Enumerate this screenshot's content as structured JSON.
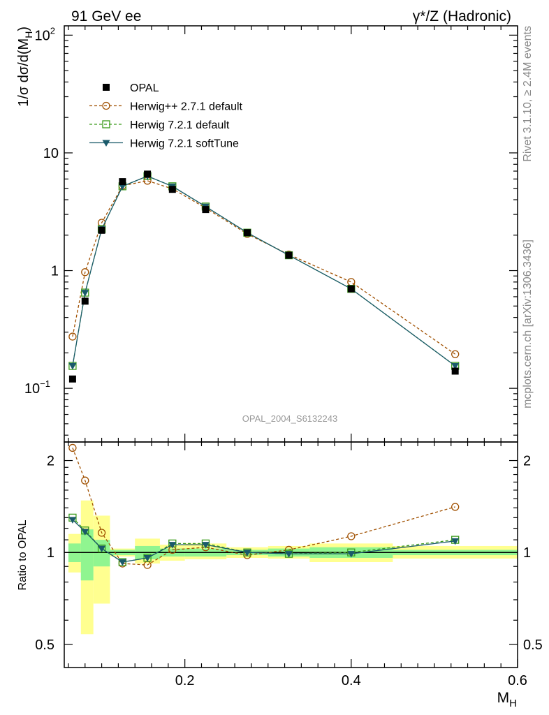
{
  "header": {
    "left": "91 GeV ee",
    "right": "γ*/Z (Hadronic)"
  },
  "side_labels": {
    "rivet": "Rivet 3.1.10, ≥ 2.4M events",
    "mcplots": "mcplots.cern.ch [arXiv:1306.3436]"
  },
  "colors": {
    "opal": "#000000",
    "herwigpp": "#a05000",
    "herwig721": "#3a9a1a",
    "softtune": "#1a5a6a",
    "band_inner": "#90f590",
    "band_outer": "#ffff90"
  },
  "chart_data": [
    {
      "type": "line",
      "panel": "main",
      "analysis_label": "OPAL_2004_S6132243",
      "ylabel": "1/σ dσ/d(M_H)",
      "yscale": "log",
      "ylim": [
        0.035,
        120
      ],
      "xlim": [
        0.055,
        0.6
      ],
      "y_ticks": [
        {
          "v": 0.1,
          "label": "10",
          "exp": "−1"
        },
        {
          "v": 1,
          "label": "1",
          "exp": ""
        },
        {
          "v": 10,
          "label": "10",
          "exp": ""
        },
        {
          "v": 100,
          "label": "10",
          "exp": "2"
        }
      ],
      "x": [
        0.065,
        0.08,
        0.1,
        0.125,
        0.155,
        0.185,
        0.225,
        0.275,
        0.325,
        0.4,
        0.525
      ],
      "series": [
        {
          "name": "OPAL",
          "style": "data",
          "values": [
            0.12,
            0.55,
            2.2,
            5.7,
            6.6,
            4.9,
            3.3,
            2.1,
            1.35,
            0.7,
            0.14
          ]
        },
        {
          "name": "Herwig++ 2.7.1 default",
          "style": "circle",
          "values": [
            0.275,
            0.97,
            2.55,
            5.25,
            5.8,
            4.95,
            3.4,
            2.05,
            1.37,
            0.8,
            0.195
          ]
        },
        {
          "name": "Herwig 7.2.1 default",
          "style": "square",
          "values": [
            0.155,
            0.65,
            2.25,
            5.2,
            6.35,
            5.2,
            3.5,
            2.1,
            1.35,
            0.7,
            0.155
          ]
        },
        {
          "name": "Herwig 7.2.1 softTune",
          "style": "triangle",
          "values": [
            0.155,
            0.65,
            2.25,
            5.2,
            6.35,
            5.2,
            3.5,
            2.1,
            1.35,
            0.7,
            0.155
          ]
        }
      ]
    },
    {
      "type": "line",
      "panel": "ratio",
      "ylabel": "Ratio to OPAL",
      "xlabel": "M_H",
      "ylim": [
        0.42,
        2.3
      ],
      "xlim": [
        0.055,
        0.6
      ],
      "y_ticks": [
        0.5,
        1,
        2
      ],
      "x_ticks": [
        0.2,
        0.4,
        0.6
      ],
      "reference": 1,
      "bands": [
        {
          "x0": 0.06,
          "x1": 0.075,
          "inner": [
            0.93,
            1.07
          ],
          "outer": [
            0.86,
            1.15
          ]
        },
        {
          "x0": 0.075,
          "x1": 0.09,
          "inner": [
            0.81,
            1.19
          ],
          "outer": [
            0.54,
            1.48
          ]
        },
        {
          "x0": 0.09,
          "x1": 0.11,
          "inner": [
            0.9,
            1.1
          ],
          "outer": [
            0.68,
            1.32
          ]
        },
        {
          "x0": 0.11,
          "x1": 0.14,
          "inner": [
            0.98,
            1.02
          ],
          "outer": [
            0.97,
            1.03
          ]
        },
        {
          "x0": 0.14,
          "x1": 0.17,
          "inner": [
            0.95,
            1.05
          ],
          "outer": [
            0.92,
            1.11
          ]
        },
        {
          "x0": 0.17,
          "x1": 0.2,
          "inner": [
            0.97,
            1.03
          ],
          "outer": [
            0.94,
            1.06
          ]
        },
        {
          "x0": 0.2,
          "x1": 0.25,
          "inner": [
            0.97,
            1.03
          ],
          "outer": [
            0.95,
            1.07
          ]
        },
        {
          "x0": 0.25,
          "x1": 0.3,
          "inner": [
            0.98,
            1.02
          ],
          "outer": [
            0.96,
            1.04
          ]
        },
        {
          "x0": 0.3,
          "x1": 0.35,
          "inner": [
            0.97,
            1.03
          ],
          "outer": [
            0.955,
            1.05
          ]
        },
        {
          "x0": 0.35,
          "x1": 0.45,
          "inner": [
            0.96,
            1.04
          ],
          "outer": [
            0.93,
            1.07
          ]
        },
        {
          "x0": 0.45,
          "x1": 0.6,
          "inner": [
            0.98,
            1.02
          ],
          "outer": [
            0.955,
            1.05
          ]
        }
      ],
      "x": [
        0.065,
        0.08,
        0.1,
        0.125,
        0.155,
        0.185,
        0.225,
        0.275,
        0.325,
        0.4,
        0.525
      ],
      "series": [
        {
          "name": "Herwig++ 2.7.1 default",
          "style": "circle",
          "values": [
            2.2,
            1.72,
            1.16,
            0.92,
            0.91,
            1.02,
            1.04,
            0.98,
            1.02,
            1.13,
            1.41
          ]
        },
        {
          "name": "Herwig 7.2.1 default",
          "style": "square",
          "values": [
            1.3,
            1.18,
            1.03,
            0.93,
            0.96,
            1.07,
            1.07,
            1.0,
            0.99,
            1.0,
            1.1
          ]
        },
        {
          "name": "Herwig 7.2.1 softTune",
          "style": "triangle",
          "values": [
            1.28,
            1.17,
            1.03,
            0.93,
            0.96,
            1.06,
            1.06,
            1.0,
            0.99,
            0.99,
            1.09
          ]
        }
      ]
    }
  ]
}
